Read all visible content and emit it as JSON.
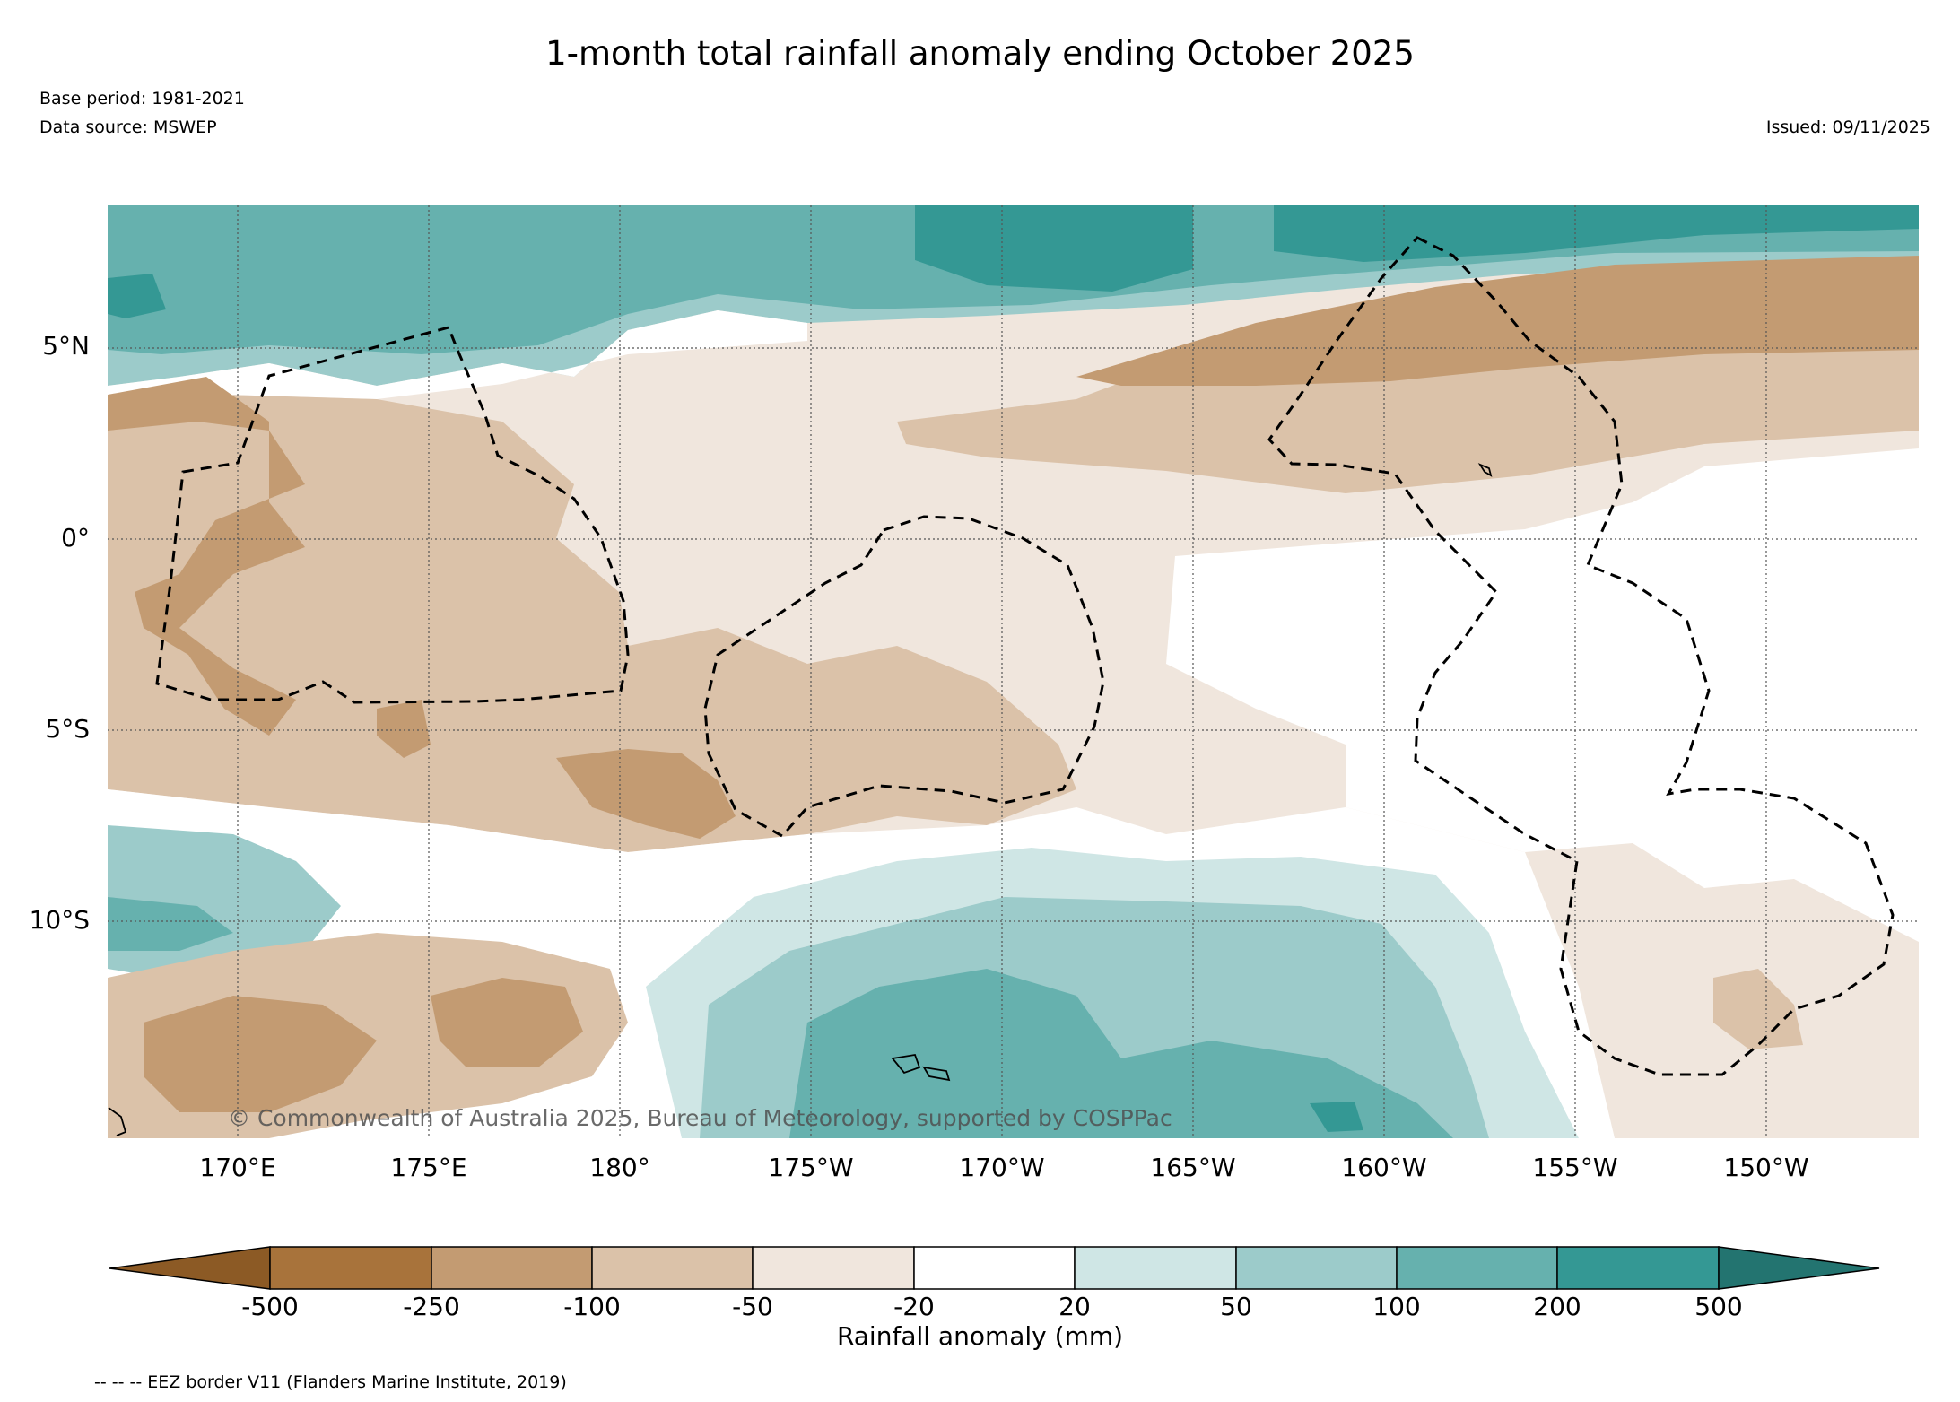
{
  "header": {
    "title": "1-month total rainfall anomaly ending October 2025",
    "base_period": "Base period: 1981-2021",
    "data_source": "Data source: MSWEP",
    "issued": "Issued: 09/11/2025"
  },
  "map": {
    "lat_labels": [
      "5°N",
      "0°",
      "5°S",
      "10°S"
    ],
    "lon_labels": [
      "170°E",
      "175°E",
      "180°",
      "175°W",
      "170°W",
      "165°W",
      "160°W",
      "155°W",
      "150°W"
    ],
    "copyright": "© Commonwealth of Australia 2025, Bureau of Meteorology, supported by COSPPac",
    "extent": {
      "lon_min_east": 166.6,
      "lon_max_east": 213.9,
      "lat_min": -15.7,
      "lat_max": 8.6
    }
  },
  "colorbar": {
    "label": "Rainfall anomaly (mm)",
    "ticks": [
      "-500",
      "-250",
      "-100",
      "-50",
      "-20",
      "20",
      "50",
      "100",
      "200",
      "500"
    ],
    "colors": [
      "#8c5a25",
      "#a8733b",
      "#c39b72",
      "#dbc2a9",
      "#f0e6dd",
      "#ffffff",
      "#cfe6e5",
      "#9ccbca",
      "#66b1ae",
      "#349894",
      "#237470"
    ],
    "units": "mm"
  },
  "footnote": "-- -- -- EEZ border V11 (Flanders Marine Institute, 2019)"
}
